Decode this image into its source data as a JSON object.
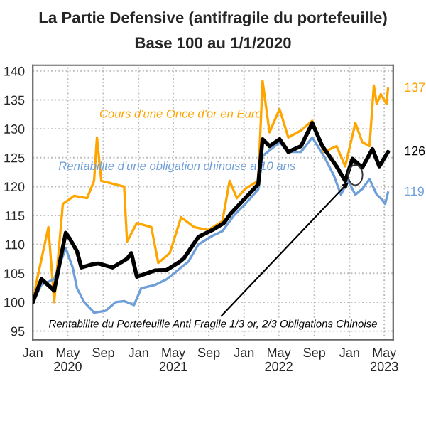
{
  "chart_data": {
    "type": "line",
    "title": "La Partie Defensive (antifragile du portefeuille)",
    "subtitle": "Base 100 au 1/1/2020",
    "series": [
      {
        "color": "#ffa500",
        "x": [
          "2020-01-01",
          "2020-01-16",
          "2020-02-24",
          "2020-03-15",
          "2020-04-14",
          "2020-05-23",
          "2020-07-07",
          "2020-07-31",
          "2020-08-10",
          "2020-08-25",
          "2020-10-03",
          "2020-11-12",
          "2020-11-22",
          "2020-12-26",
          "2021-02-14",
          "2021-03-10",
          "2021-04-19",
          "2021-05-28",
          "2021-07-12",
          "2021-08-30",
          "2021-10-18",
          "2021-11-12",
          "2021-12-07",
          "2022-01-05",
          "2022-02-19",
          "2022-03-06",
          "2022-03-30",
          "2022-05-04",
          "2022-06-03",
          "2022-07-17",
          "2022-08-25",
          "2022-10-04",
          "2022-11-17",
          "2022-12-17",
          "2023-01-21",
          "2023-02-14",
          "2023-03-11",
          "2023-03-26",
          "2023-04-05",
          "2023-04-19",
          "2023-05-09",
          "2023-05-14"
        ],
        "values": [
          100,
          104,
          113,
          100,
          117,
          118.4,
          118,
          121,
          128.5,
          121,
          120.5,
          120,
          110.5,
          113.7,
          113,
          106.8,
          108.5,
          114.7,
          113,
          112.5,
          114,
          121,
          118,
          119.6,
          121,
          138.3,
          129.4,
          133.4,
          128.5,
          129.7,
          131.4,
          126,
          127,
          123.5,
          131,
          127.7,
          127,
          137.5,
          134.3,
          136,
          134.3,
          137
        ],
        "value_labels": [
          null,
          null,
          null,
          null,
          null,
          null,
          null,
          null,
          null,
          null,
          null,
          null,
          null,
          null,
          null,
          null,
          null,
          null,
          null,
          null,
          null,
          null,
          null,
          null,
          null,
          null,
          null,
          null,
          null,
          null,
          null,
          null,
          null,
          null,
          null,
          null,
          null,
          null,
          null,
          null,
          null,
          "137"
        ]
      },
      {
        "color": "#000000",
        "x": [
          "2020-01-01",
          "2020-01-31",
          "2020-03-15",
          "2020-04-24",
          "2020-05-08",
          "2020-06-02",
          "2020-06-17",
          "2020-07-21",
          "2020-08-15",
          "2020-10-03",
          "2020-11-22",
          "2020-12-07",
          "2020-12-26",
          "2021-02-28",
          "2021-04-09",
          "2021-05-23",
          "2021-06-07",
          "2021-07-27",
          "2021-09-14",
          "2021-10-23",
          "2021-11-17",
          "2022-01-05",
          "2022-02-19",
          "2022-03-06",
          "2022-03-30",
          "2022-05-04",
          "2022-06-03",
          "2022-07-17",
          "2022-08-25",
          "2022-09-29",
          "2022-11-17",
          "2022-12-17",
          "2023-01-11",
          "2023-02-14",
          "2023-03-21",
          "2023-04-14",
          "2023-05-14"
        ],
        "values": [
          100,
          104,
          102,
          112,
          111,
          108.8,
          106,
          106.5,
          106.7,
          106,
          107.5,
          108.5,
          104.4,
          105.5,
          105.6,
          107,
          107.6,
          111.3,
          112.5,
          113.7,
          115.4,
          118,
          120.4,
          128.2,
          127,
          128.2,
          126,
          127,
          131,
          127,
          123.5,
          121,
          124.8,
          123.3,
          126.5,
          123.5,
          126
        ],
        "value_labels": [
          null,
          null,
          null,
          null,
          null,
          null,
          null,
          null,
          null,
          null,
          null,
          null,
          null,
          null,
          null,
          null,
          null,
          null,
          null,
          null,
          null,
          null,
          null,
          null,
          null,
          null,
          null,
          null,
          null,
          null,
          null,
          null,
          null,
          null,
          null,
          null,
          "126"
        ]
      },
      {
        "color": "#6f9fd8",
        "x": [
          "2020-01-01",
          "2020-01-31",
          "2020-03-15",
          "2020-04-24",
          "2020-05-18",
          "2020-06-02",
          "2020-06-27",
          "2020-07-31",
          "2020-09-09",
          "2020-10-13",
          "2020-11-12",
          "2020-12-16",
          "2021-01-10",
          "2021-02-28",
          "2021-04-09",
          "2021-05-18",
          "2021-06-22",
          "2021-07-27",
          "2021-09-14",
          "2021-10-18",
          "2021-11-27",
          "2022-01-05",
          "2022-02-19",
          "2022-03-06",
          "2022-05-04",
          "2022-06-03",
          "2022-07-17",
          "2022-08-25",
          "2022-10-04",
          "2022-11-07",
          "2022-12-02",
          "2022-12-27",
          "2023-01-21",
          "2023-02-14",
          "2023-03-11",
          "2023-04-05",
          "2023-04-19",
          "2023-05-04",
          "2023-05-14"
        ],
        "values": [
          100,
          103,
          104,
          109.3,
          106,
          102.4,
          100,
          98.2,
          98.5,
          100,
          100.2,
          99.5,
          102.4,
          103,
          104,
          105.6,
          107,
          110,
          111.5,
          112.3,
          115,
          117,
          119.5,
          125.3,
          127.7,
          126,
          126,
          128.5,
          125.3,
          122,
          118.6,
          121,
          118.6,
          119.6,
          121.3,
          118.6,
          118,
          117,
          119
        ],
        "value_labels": [
          null,
          null,
          null,
          null,
          null,
          null,
          null,
          null,
          null,
          null,
          null,
          null,
          null,
          null,
          null,
          null,
          null,
          null,
          null,
          null,
          null,
          null,
          null,
          null,
          null,
          null,
          null,
          null,
          null,
          null,
          null,
          null,
          null,
          null,
          null,
          null,
          null,
          null,
          "119"
        ]
      }
    ],
    "annotations": [
      "Cours d'une Once d'or en Euro",
      {
        "text": "Rentabilite du Portefeuille Anti Fragile 1/3 or, 2/3 Obligations Chinoise",
        "x": "2023-01-21",
        "y": 122
      },
      "Rentabilite d'une obligation chinoise a 10 ans"
    ],
    "xlim": [
      "2020-01-01",
      "2023-06-01"
    ],
    "xticks": [
      {
        "value": "2020-01-01",
        "label": "Jan"
      },
      {
        "value": "2020-05-01",
        "label": "May\n2020"
      },
      {
        "value": "2020-09-01",
        "label": "Sep"
      },
      {
        "value": "2021-01-01",
        "label": "Jan"
      },
      {
        "value": "2021-05-01",
        "label": "May\n2021"
      },
      {
        "value": "2021-09-01",
        "label": "Sep"
      },
      {
        "value": "2022-01-01",
        "label": "Jan"
      },
      {
        "value": "2022-05-01",
        "label": "May\n2022"
      },
      {
        "value": "2022-09-01",
        "label": "Sep"
      },
      {
        "value": "2023-01-01",
        "label": "Jan"
      },
      {
        "value": "2023-05-01",
        "label": "May\n2023"
      }
    ],
    "ylim": [
      93.5,
      141
    ],
    "yticks": [
      95,
      100,
      105,
      110,
      115,
      120,
      125,
      130,
      135,
      140
    ],
    "grid": true,
    "legend": false,
    "line_style": "solid",
    "marker": "none"
  }
}
